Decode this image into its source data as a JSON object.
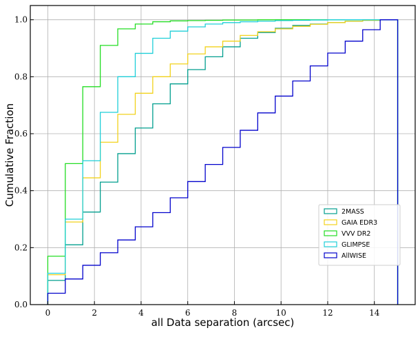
{
  "chart_data": {
    "type": "step",
    "xlabel": "all Data separation (arcsec)",
    "ylabel": "Cumulative Fraction",
    "xlim": [
      -0.75,
      15.75
    ],
    "ylim": [
      0,
      1.05
    ],
    "xticks": [
      0,
      2,
      4,
      6,
      8,
      10,
      12,
      14
    ],
    "yticks": [
      0.0,
      0.2,
      0.4,
      0.6,
      0.8,
      1.0
    ],
    "grid": true,
    "legend_position": "lower-right",
    "bin_edges": [
      0,
      0.75,
      1.5,
      2.25,
      3.0,
      3.75,
      4.5,
      5.25,
      6.0,
      6.75,
      7.5,
      8.25,
      9.0,
      9.75,
      10.5,
      11.25,
      12.0,
      12.75,
      13.5,
      14.25,
      15.0
    ],
    "series": [
      {
        "name": "2MASS",
        "color": "#009e8e",
        "values": [
          0.085,
          0.21,
          0.325,
          0.43,
          0.53,
          0.62,
          0.705,
          0.775,
          0.825,
          0.87,
          0.905,
          0.935,
          0.955,
          0.97,
          0.98,
          0.985,
          0.99,
          0.995,
          0.998,
          1.0
        ]
      },
      {
        "name": "GAIA EDR3",
        "color": "#f2d21b",
        "values": [
          0.105,
          0.29,
          0.445,
          0.57,
          0.668,
          0.742,
          0.8,
          0.845,
          0.88,
          0.905,
          0.925,
          0.945,
          0.958,
          0.968,
          0.977,
          0.984,
          0.99,
          0.995,
          0.998,
          1.0
        ]
      },
      {
        "name": "VVV DR2",
        "color": "#22dd22",
        "values": [
          0.17,
          0.495,
          0.765,
          0.91,
          0.968,
          0.985,
          0.993,
          0.996,
          0.997,
          0.998,
          0.999,
          0.999,
          1.0,
          1.0,
          1.0,
          1.0,
          1.0,
          1.0,
          1.0,
          1.0
        ]
      },
      {
        "name": "GLIMPSE",
        "color": "#1ecfd8",
        "values": [
          0.11,
          0.3,
          0.505,
          0.675,
          0.8,
          0.882,
          0.935,
          0.96,
          0.975,
          0.985,
          0.99,
          0.993,
          0.995,
          0.997,
          0.998,
          0.999,
          1.0,
          1.0,
          1.0,
          1.0
        ]
      },
      {
        "name": "AllWISE",
        "color": "#0000cc",
        "values": [
          0.04,
          0.09,
          0.138,
          0.182,
          0.227,
          0.273,
          0.323,
          0.375,
          0.432,
          0.492,
          0.552,
          0.612,
          0.673,
          0.732,
          0.785,
          0.838,
          0.883,
          0.925,
          0.965,
          1.0
        ]
      }
    ]
  }
}
